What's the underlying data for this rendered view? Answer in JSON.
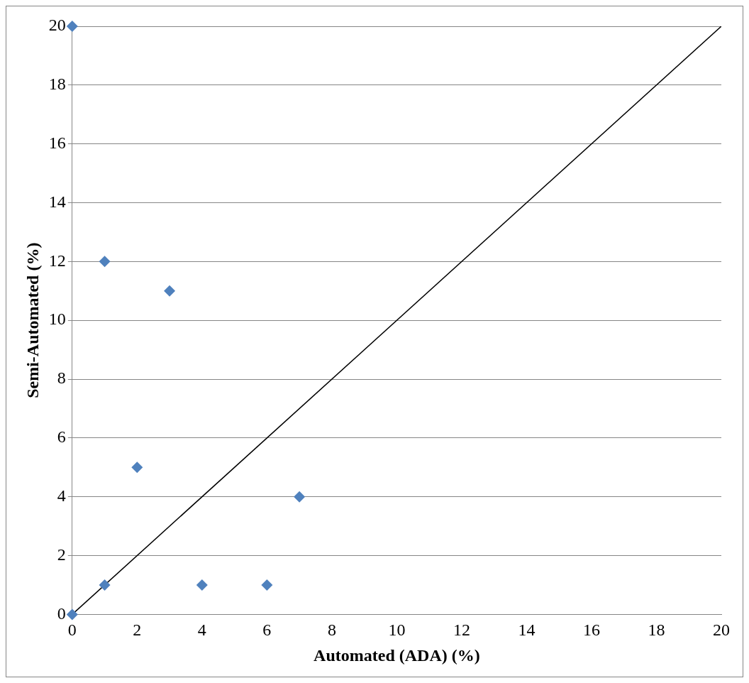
{
  "chart_data": {
    "type": "scatter",
    "xlabel": "Automated (ADA) (%)",
    "ylabel": "Semi-Automated (%)",
    "series": [
      {
        "color": "#4f81bd",
        "x": [
          0,
          1,
          3,
          2,
          7,
          1,
          4,
          6,
          0
        ],
        "values": [
          20,
          12,
          11,
          5,
          4,
          1,
          1,
          1,
          0
        ],
        "marker": "diamond"
      },
      {
        "type": "line",
        "color": "#000000",
        "x": [
          0,
          20
        ],
        "values": [
          0,
          20
        ],
        "marker": "none",
        "line_style": "solid"
      }
    ],
    "xlim": [
      0,
      20
    ],
    "xticks": [
      0,
      2,
      4,
      6,
      8,
      10,
      12,
      14,
      16,
      18,
      20
    ],
    "ylim": [
      0,
      20
    ],
    "yticks": [
      0,
      2,
      4,
      6,
      8,
      10,
      12,
      14,
      16,
      18,
      20
    ],
    "grid": "y",
    "legend": false
  }
}
